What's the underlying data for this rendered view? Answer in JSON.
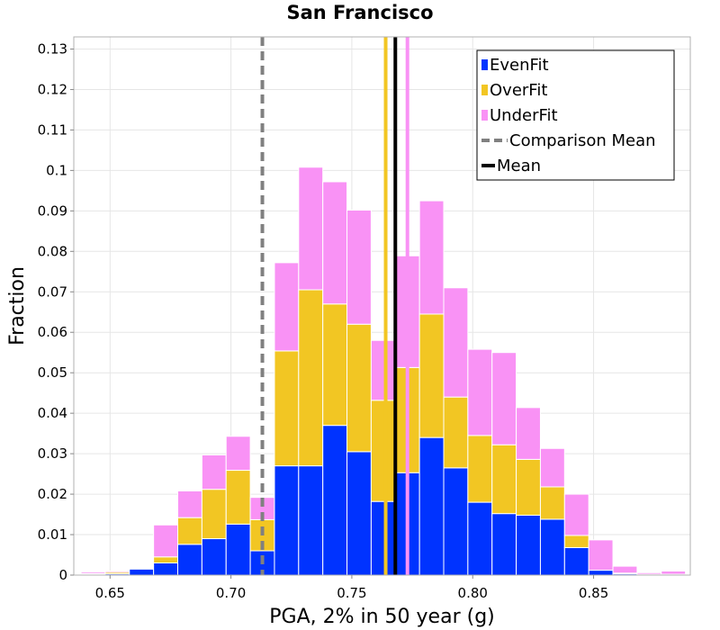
{
  "chart_data": {
    "type": "bar",
    "stacked": true,
    "title": "San Francisco",
    "xlabel": "PGA, 2% in 50 year (g)",
    "ylabel": "Fraction",
    "xlim": [
      0.635,
      0.89
    ],
    "ylim": [
      0,
      0.133
    ],
    "xticks": [
      "0.65",
      "0.70",
      "0.75",
      "0.80",
      "0.85"
    ],
    "xtick_values": [
      0.65,
      0.7,
      0.75,
      0.8,
      0.85
    ],
    "yticks": [
      "0",
      "0.01",
      "0.02",
      "0.03",
      "0.04",
      "0.05",
      "0.06",
      "0.07",
      "0.08",
      "0.09",
      "0.1",
      "0.11",
      "0.12",
      "0.13"
    ],
    "ytick_values": [
      0,
      0.01,
      0.02,
      0.03,
      0.04,
      0.05,
      0.06,
      0.07,
      0.08,
      0.09,
      0.1,
      0.11,
      0.12,
      0.13
    ],
    "grid": true,
    "legend_position": "top-right",
    "bin_width": 0.01,
    "bin_centers": [
      0.643,
      0.653,
      0.663,
      0.673,
      0.683,
      0.693,
      0.703,
      0.713,
      0.723,
      0.733,
      0.743,
      0.753,
      0.763,
      0.773,
      0.783,
      0.793,
      0.803,
      0.813,
      0.823,
      0.833,
      0.843,
      0.853,
      0.863,
      0.873,
      0.883
    ],
    "series": [
      {
        "name": "EvenFit",
        "color": "#0033ff",
        "values": [
          0.0002,
          0.0003,
          0.0015,
          0.003,
          0.0076,
          0.009,
          0.0126,
          0.006,
          0.027,
          0.027,
          0.037,
          0.0305,
          0.0182,
          0.0253,
          0.034,
          0.0265,
          0.018,
          0.0152,
          0.0148,
          0.0138,
          0.0068,
          0.0012,
          0.0003,
          0.0002,
          0.0002
        ]
      },
      {
        "name": "OverFit",
        "color": "#f2c623",
        "values": [
          0.0002,
          0.0004,
          0.0002,
          0.0015,
          0.0066,
          0.0122,
          0.0133,
          0.0077,
          0.0284,
          0.0435,
          0.03,
          0.0315,
          0.025,
          0.026,
          0.0305,
          0.0175,
          0.0165,
          0.017,
          0.0138,
          0.008,
          0.003,
          0.0,
          0.0002,
          0.0,
          0.0
        ]
      },
      {
        "name": "UnderFit",
        "color": "#f992f5",
        "values": [
          0.0004,
          0.0003,
          0.0,
          0.0079,
          0.0066,
          0.0085,
          0.0084,
          0.0055,
          0.0218,
          0.0303,
          0.0302,
          0.0282,
          0.0148,
          0.0276,
          0.028,
          0.027,
          0.0213,
          0.0228,
          0.0128,
          0.0095,
          0.0102,
          0.0075,
          0.0017,
          0.0004,
          0.0008
        ]
      }
    ],
    "reference_lines": [
      {
        "name": "Comparison Mean",
        "x": 0.713,
        "color": "#808080",
        "style": "dashed"
      },
      {
        "name": "Mean",
        "x": 0.768,
        "color": "#000000",
        "style": "solid"
      },
      {
        "x": 0.764,
        "color": "#f2c623",
        "style": "solid"
      },
      {
        "x": 0.773,
        "color": "#f992f5",
        "style": "solid"
      }
    ],
    "legend": [
      {
        "label": "EvenFit",
        "kind": "box",
        "color": "#0033ff"
      },
      {
        "label": "OverFit",
        "kind": "box",
        "color": "#f2c623"
      },
      {
        "label": "UnderFit",
        "kind": "box",
        "color": "#f992f5"
      },
      {
        "label": "Comparison Mean",
        "kind": "dash",
        "color": "#808080"
      },
      {
        "label": "Mean",
        "kind": "line",
        "color": "#000000"
      }
    ]
  }
}
